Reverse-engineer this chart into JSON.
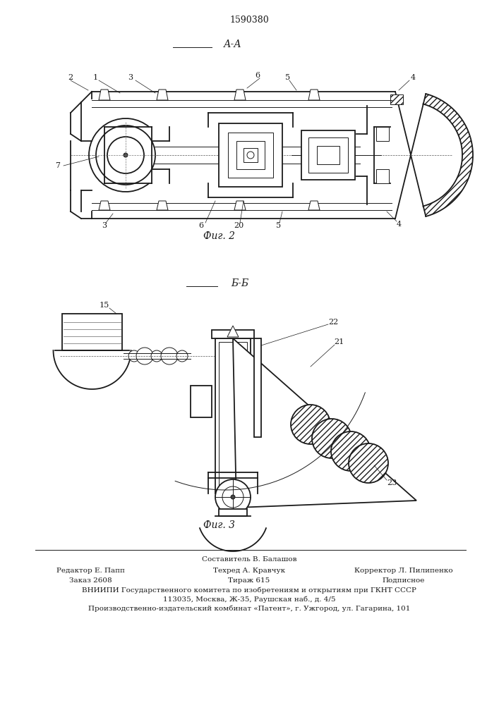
{
  "patent_number": "1590380",
  "fig2_label": "А-А",
  "fig2_caption": "Фиг. 2",
  "fig3_label": "Б-Б",
  "fig3_caption": "Фиг. 3",
  "footer_line1": "Составитель В. Балашов",
  "footer_line2_left": "Редактор Е. Папп",
  "footer_line2_mid": "Техред А. Кравчук",
  "footer_line2_right": "Корректор Л. Пилипенко",
  "footer_line3_left": "Заказ 2608",
  "footer_line3_mid": "Тираж 615",
  "footer_line3_right": "Подписное",
  "footer_line4": "ВНИИПИ Государственного комитета по изобретениям и открытиям при ГКНТ СССР",
  "footer_line5": "113035, Москва, Ж-35, Раушская наб., д. 4/5",
  "footer_line6": "Производственно-издательский комбинат «Патент», г. Ужгород, ул. Гагарина, 101",
  "bg_color": "#ffffff",
  "line_color": "#1a1a1a"
}
